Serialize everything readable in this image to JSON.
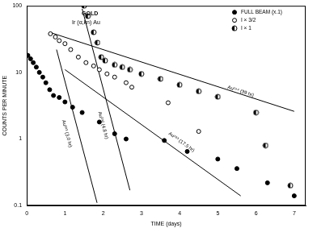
{
  "chart_data": {
    "type": "scatter",
    "title": "GOLD",
    "subtitle": "Ir (α,kn) Au",
    "x_label": "TIME (days)",
    "y_label": "COUNTS PER MINUTE",
    "log": "y",
    "grid": false,
    "legend": "upper right",
    "xlim": [
      0,
      7.3
    ],
    "xticks": [
      0,
      1,
      2,
      3,
      4,
      5,
      6,
      7
    ],
    "ylim": [
      0.1,
      100
    ],
    "yticks": [
      0.1,
      1,
      10,
      100
    ],
    "series": [
      {
        "name": "FULL BEAM (x.1)",
        "color": "#000000",
        "marker": "circle",
        "x": [
          0.03,
          0.1,
          0.17,
          0.25,
          0.33,
          0.42,
          0.5,
          0.6,
          0.7,
          0.85,
          1.0,
          1.2,
          1.45,
          1.9,
          2.3,
          2.6,
          3.6,
          4.2,
          5.0,
          5.5,
          6.3,
          7.0
        ],
        "values": [
          18,
          16,
          14,
          12,
          10,
          8.5,
          7,
          5.5,
          4.5,
          4.2,
          3.6,
          3.0,
          2.5,
          1.8,
          1.2,
          1.0,
          0.95,
          0.65,
          0.5,
          0.36,
          0.22,
          0.14
        ]
      },
      {
        "name": "I × 3/2",
        "color": "#000000",
        "marker": "circle_open",
        "x": [
          0.62,
          0.75,
          0.85,
          1.0,
          1.15,
          1.35,
          1.55,
          1.75,
          1.9,
          2.1,
          2.3,
          2.6,
          2.75,
          3.7,
          4.5
        ],
        "values": [
          38,
          34,
          30,
          27,
          22,
          17,
          14,
          12.5,
          11,
          9.5,
          8.5,
          7,
          6,
          3.5,
          1.3
        ]
      },
      {
        "name": "I × 1",
        "color": "#000000",
        "marker": "circle_half",
        "x": [
          1.5,
          1.6,
          1.75,
          1.85,
          1.95,
          2.05,
          2.3,
          2.5,
          2.7,
          3.0,
          3.5,
          4.0,
          4.5,
          5.0,
          6.0,
          6.25,
          6.9
        ],
        "values": [
          100,
          70,
          40,
          28,
          17,
          15,
          13,
          12,
          11,
          9.5,
          8,
          6.5,
          5.2,
          4.3,
          2.5,
          0.8,
          0.2
        ]
      }
    ],
    "lines": [
      {
        "label": "Au¹⁹¹ (3.0 hr)",
        "color": "#000000",
        "line_style": "solid",
        "x": [
          0.78,
          1.84
        ],
        "values": [
          22,
          0.11
        ],
        "label_x": 1.05,
        "label_y": 1.2
      },
      {
        "label": "Au¹⁹² (4.8 hr)",
        "color": "#000000",
        "line_style": "solid",
        "x": [
          1.45,
          2.7
        ],
        "values": [
          90,
          0.17
        ],
        "label_x": 2.0,
        "label_y": 1.6
      },
      {
        "label": "Au¹⁹³ (17.5 hr)",
        "color": "#000000",
        "line_style": "solid",
        "x": [
          1.0,
          5.6
        ],
        "values": [
          11,
          0.14
        ],
        "label_x": 4.05,
        "label_y": 0.9
      },
      {
        "label": "Au¹⁹⁴ (39 hr)",
        "color": "#000000",
        "line_style": "solid",
        "x": [
          0.6,
          7.0
        ],
        "values": [
          40,
          2.6
        ],
        "label_x": 5.6,
        "label_y": 5.2
      }
    ]
  }
}
